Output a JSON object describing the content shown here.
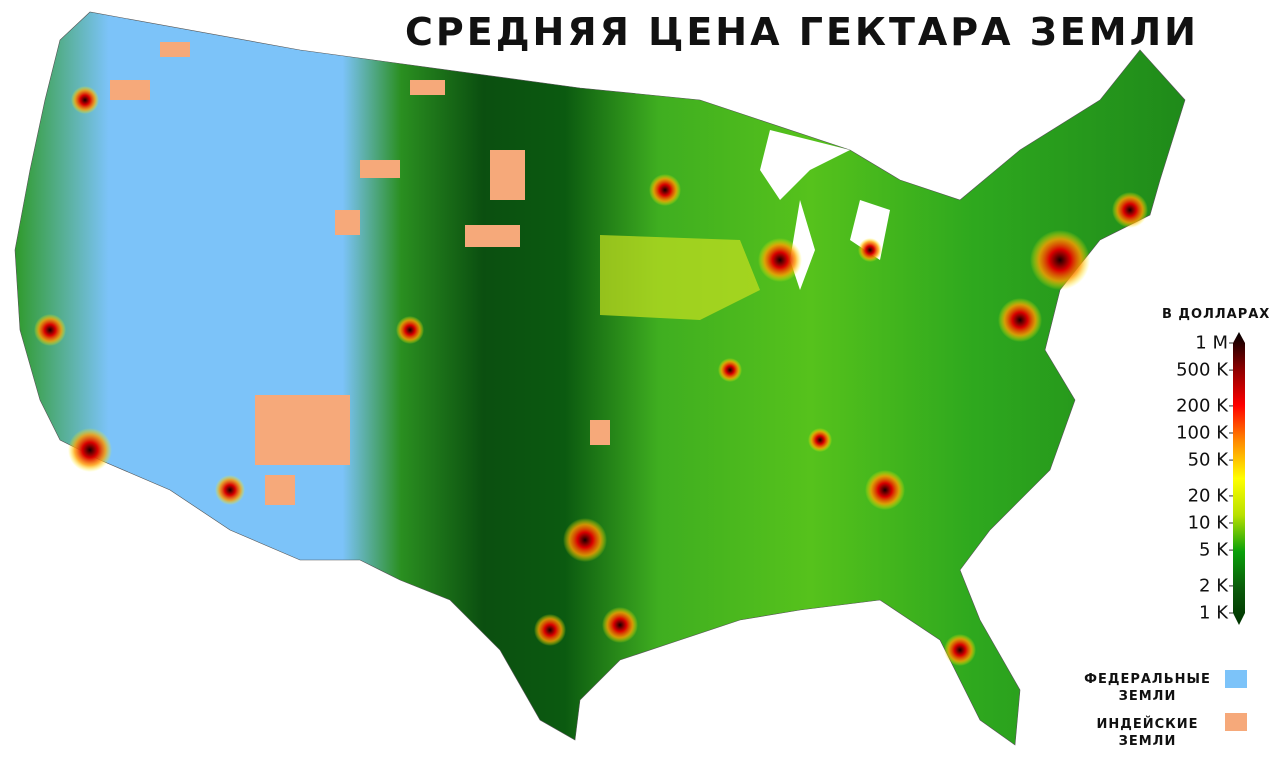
{
  "title": "СРЕДНЯЯ ЦЕНА ГЕКТАРА ЗЕМЛИ",
  "colorbar": {
    "title": "В ДОЛЛАРАХ",
    "scale": "log",
    "range": [
      1000,
      1000000
    ],
    "ticks": [
      {
        "label": "1 M",
        "value": 1000000
      },
      {
        "label": "500 K",
        "value": 500000
      },
      {
        "label": "200 K",
        "value": 200000
      },
      {
        "label": "100 K",
        "value": 100000
      },
      {
        "label": "50 K",
        "value": 50000
      },
      {
        "label": "20 K",
        "value": 20000
      },
      {
        "label": "10 K",
        "value": 10000
      },
      {
        "label": "5 K",
        "value": 5000
      },
      {
        "label": "2 K",
        "value": 2000
      },
      {
        "label": "1 K",
        "value": 1000
      }
    ],
    "colors": [
      "#003300",
      "#0a5a0a",
      "#0aa00a",
      "#b8e000",
      "#ffff00",
      "#ff8c00",
      "#ff0000",
      "#8b0000",
      "#000000"
    ]
  },
  "legend": [
    {
      "label_line1": "ФЕДЕРАЛЬНЫЕ",
      "label_line2": "ЗЕМЛИ",
      "color": "#7cc3f9"
    },
    {
      "label_line1": "ИНДЕЙСКИЕ",
      "label_line2": "ЗЕМЛИ",
      "color": "#f6a97a"
    }
  ]
}
